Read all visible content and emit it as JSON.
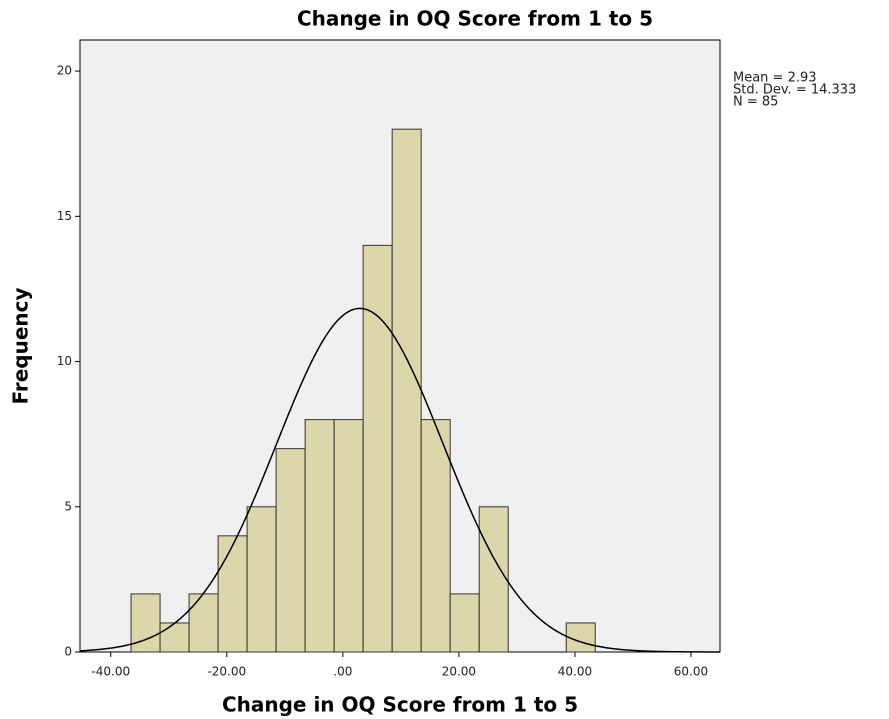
{
  "chart_data": {
    "type": "histogram",
    "title": "Change in OQ Score from 1 to 5",
    "x_label": "Change in OQ Score from 1 to 5",
    "y_label": "Frequency",
    "bins": [
      -36.5,
      -31.5,
      -26.5,
      -21.5,
      -16.5,
      -11.5,
      -6.5,
      -1.5,
      3.5,
      8.5,
      13.5,
      18.5,
      23.5,
      28.5,
      33.5,
      38.5,
      43.5
    ],
    "values": [
      2,
      1,
      2,
      4,
      5,
      7,
      8,
      8,
      14,
      18,
      8,
      2,
      5,
      0,
      0,
      1
    ],
    "color": "#dcd7aa",
    "xlim": [
      -45.3,
      65
    ],
    "ylim": [
      0,
      21.07
    ],
    "xticks": [
      {
        "value": -40,
        "label": "-40.00"
      },
      {
        "value": -20,
        "label": "-20.00"
      },
      {
        "value": 0,
        "label": ".00"
      },
      {
        "value": 20,
        "label": "20.00"
      },
      {
        "value": 40,
        "label": "40.00"
      },
      {
        "value": 60,
        "label": "60.00"
      }
    ],
    "yticks": [
      0,
      5,
      10,
      15,
      20
    ],
    "stats": [
      {
        "value": 2.93,
        "label": "Mean = 2.93"
      },
      {
        "value": 14.333,
        "label": "Std. Dev. = 14.333"
      },
      {
        "value": 85,
        "label": "N = 85"
      }
    ]
  }
}
